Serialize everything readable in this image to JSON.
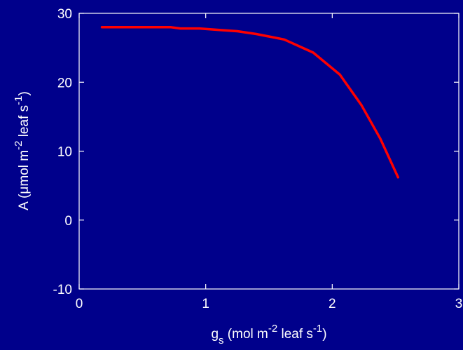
{
  "chart_data": {
    "type": "line",
    "xlabel": {
      "base": "g",
      "sub": "s",
      "unit_pre": " (mol m",
      "unit_exp1": "-2",
      "unit_mid": " leaf s",
      "unit_exp2": "-1",
      "unit_post": ")"
    },
    "ylabel": {
      "prefix": "A (",
      "mu": "μ",
      "unit_pre": "mol m",
      "unit_exp1": "-2",
      "unit_mid": " leaf s",
      "unit_exp2": "-1",
      "unit_post": ")"
    },
    "xlim": [
      0,
      3
    ],
    "ylim": [
      -10,
      30
    ],
    "xticks": [
      0,
      1,
      2,
      3
    ],
    "yticks": [
      -10,
      0,
      10,
      20,
      30
    ],
    "xtick_labels": [
      "0",
      "1",
      "2",
      "3"
    ],
    "ytick_labels": [
      "-10",
      "0",
      "10",
      "20",
      "30"
    ],
    "grid": false,
    "legend": "none",
    "colors": {
      "background": "#00008b",
      "axes": "#ffffff",
      "line": "#ff0000"
    },
    "series": [
      {
        "x": [
          0.18,
          0.4,
          0.6,
          0.72,
          0.8,
          0.95,
          1.1,
          1.25,
          1.4,
          1.62,
          1.85,
          2.06,
          2.23,
          2.38,
          2.52
        ],
        "y": [
          28.0,
          28.0,
          28.0,
          28.0,
          27.8,
          27.8,
          27.6,
          27.4,
          27.0,
          26.2,
          24.3,
          21.1,
          16.7,
          11.8,
          6.2
        ]
      }
    ]
  }
}
